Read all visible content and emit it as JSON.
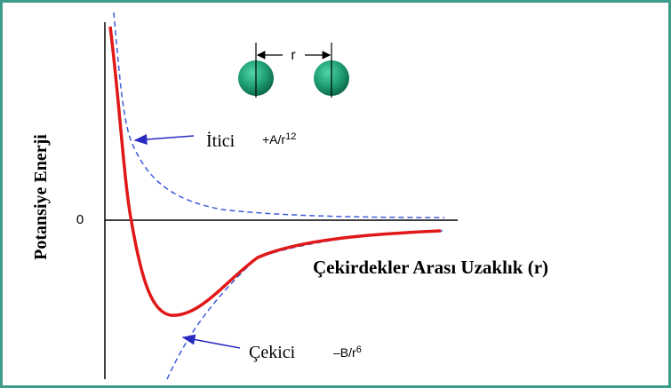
{
  "axes": {
    "y_label": "Potansiye Enerji",
    "zero_label": "0",
    "x_label": "Çekirdekler Arası Uzaklık (r)"
  },
  "atoms": {
    "distance_label": "r"
  },
  "repulsive": {
    "name": "İtici",
    "formula_base": "+A/r",
    "formula_exponent": "12"
  },
  "attractive": {
    "name": "Çekici",
    "formula_base": "–B/r",
    "formula_exponent": "6"
  }
}
